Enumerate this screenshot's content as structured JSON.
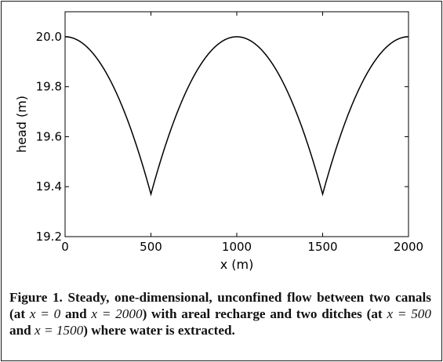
{
  "chart_data": {
    "type": "line",
    "title": "",
    "xlabel": "x (m)",
    "ylabel": "head (m)",
    "xlim": [
      0,
      2000
    ],
    "ylim": [
      19.2,
      20.1
    ],
    "xticks": [
      0,
      500,
      1000,
      1500,
      2000
    ],
    "xtick_labels": [
      "0",
      "500",
      "1000",
      "1500",
      "2000"
    ],
    "yticks": [
      19.2,
      19.4,
      19.6,
      19.8,
      20.0
    ],
    "ytick_labels": [
      "19.2",
      "19.4",
      "19.6",
      "19.8",
      "20.0"
    ],
    "grid": false,
    "series": [
      {
        "name": "head",
        "color": "#000000",
        "x": [
          0,
          100,
          200,
          300,
          400,
          450,
          500,
          550,
          600,
          700,
          800,
          900,
          1000,
          1100,
          1200,
          1300,
          1400,
          1450,
          1500,
          1550,
          1600,
          1700,
          1800,
          1900,
          2000
        ],
        "y": [
          20.0,
          19.976,
          19.902,
          19.776,
          19.597,
          19.488,
          19.37,
          19.488,
          19.597,
          19.776,
          19.902,
          19.976,
          20.0,
          19.976,
          19.902,
          19.776,
          19.597,
          19.488,
          19.37,
          19.488,
          19.597,
          19.776,
          19.902,
          19.976,
          20.0
        ]
      }
    ]
  },
  "caption": {
    "label": "Figure 1.",
    "part1": "Steady, one-dimensional, unconfined flow between two canals (at ",
    "eq1": "x = 0",
    "part2": " and ",
    "eq2": "x = 2000",
    "part3": ") with areal recharge and two ditches (at ",
    "eq3": "x = 500",
    "part4": " and ",
    "eq4": "x = 1500",
    "part5": ") where water is extracted."
  }
}
